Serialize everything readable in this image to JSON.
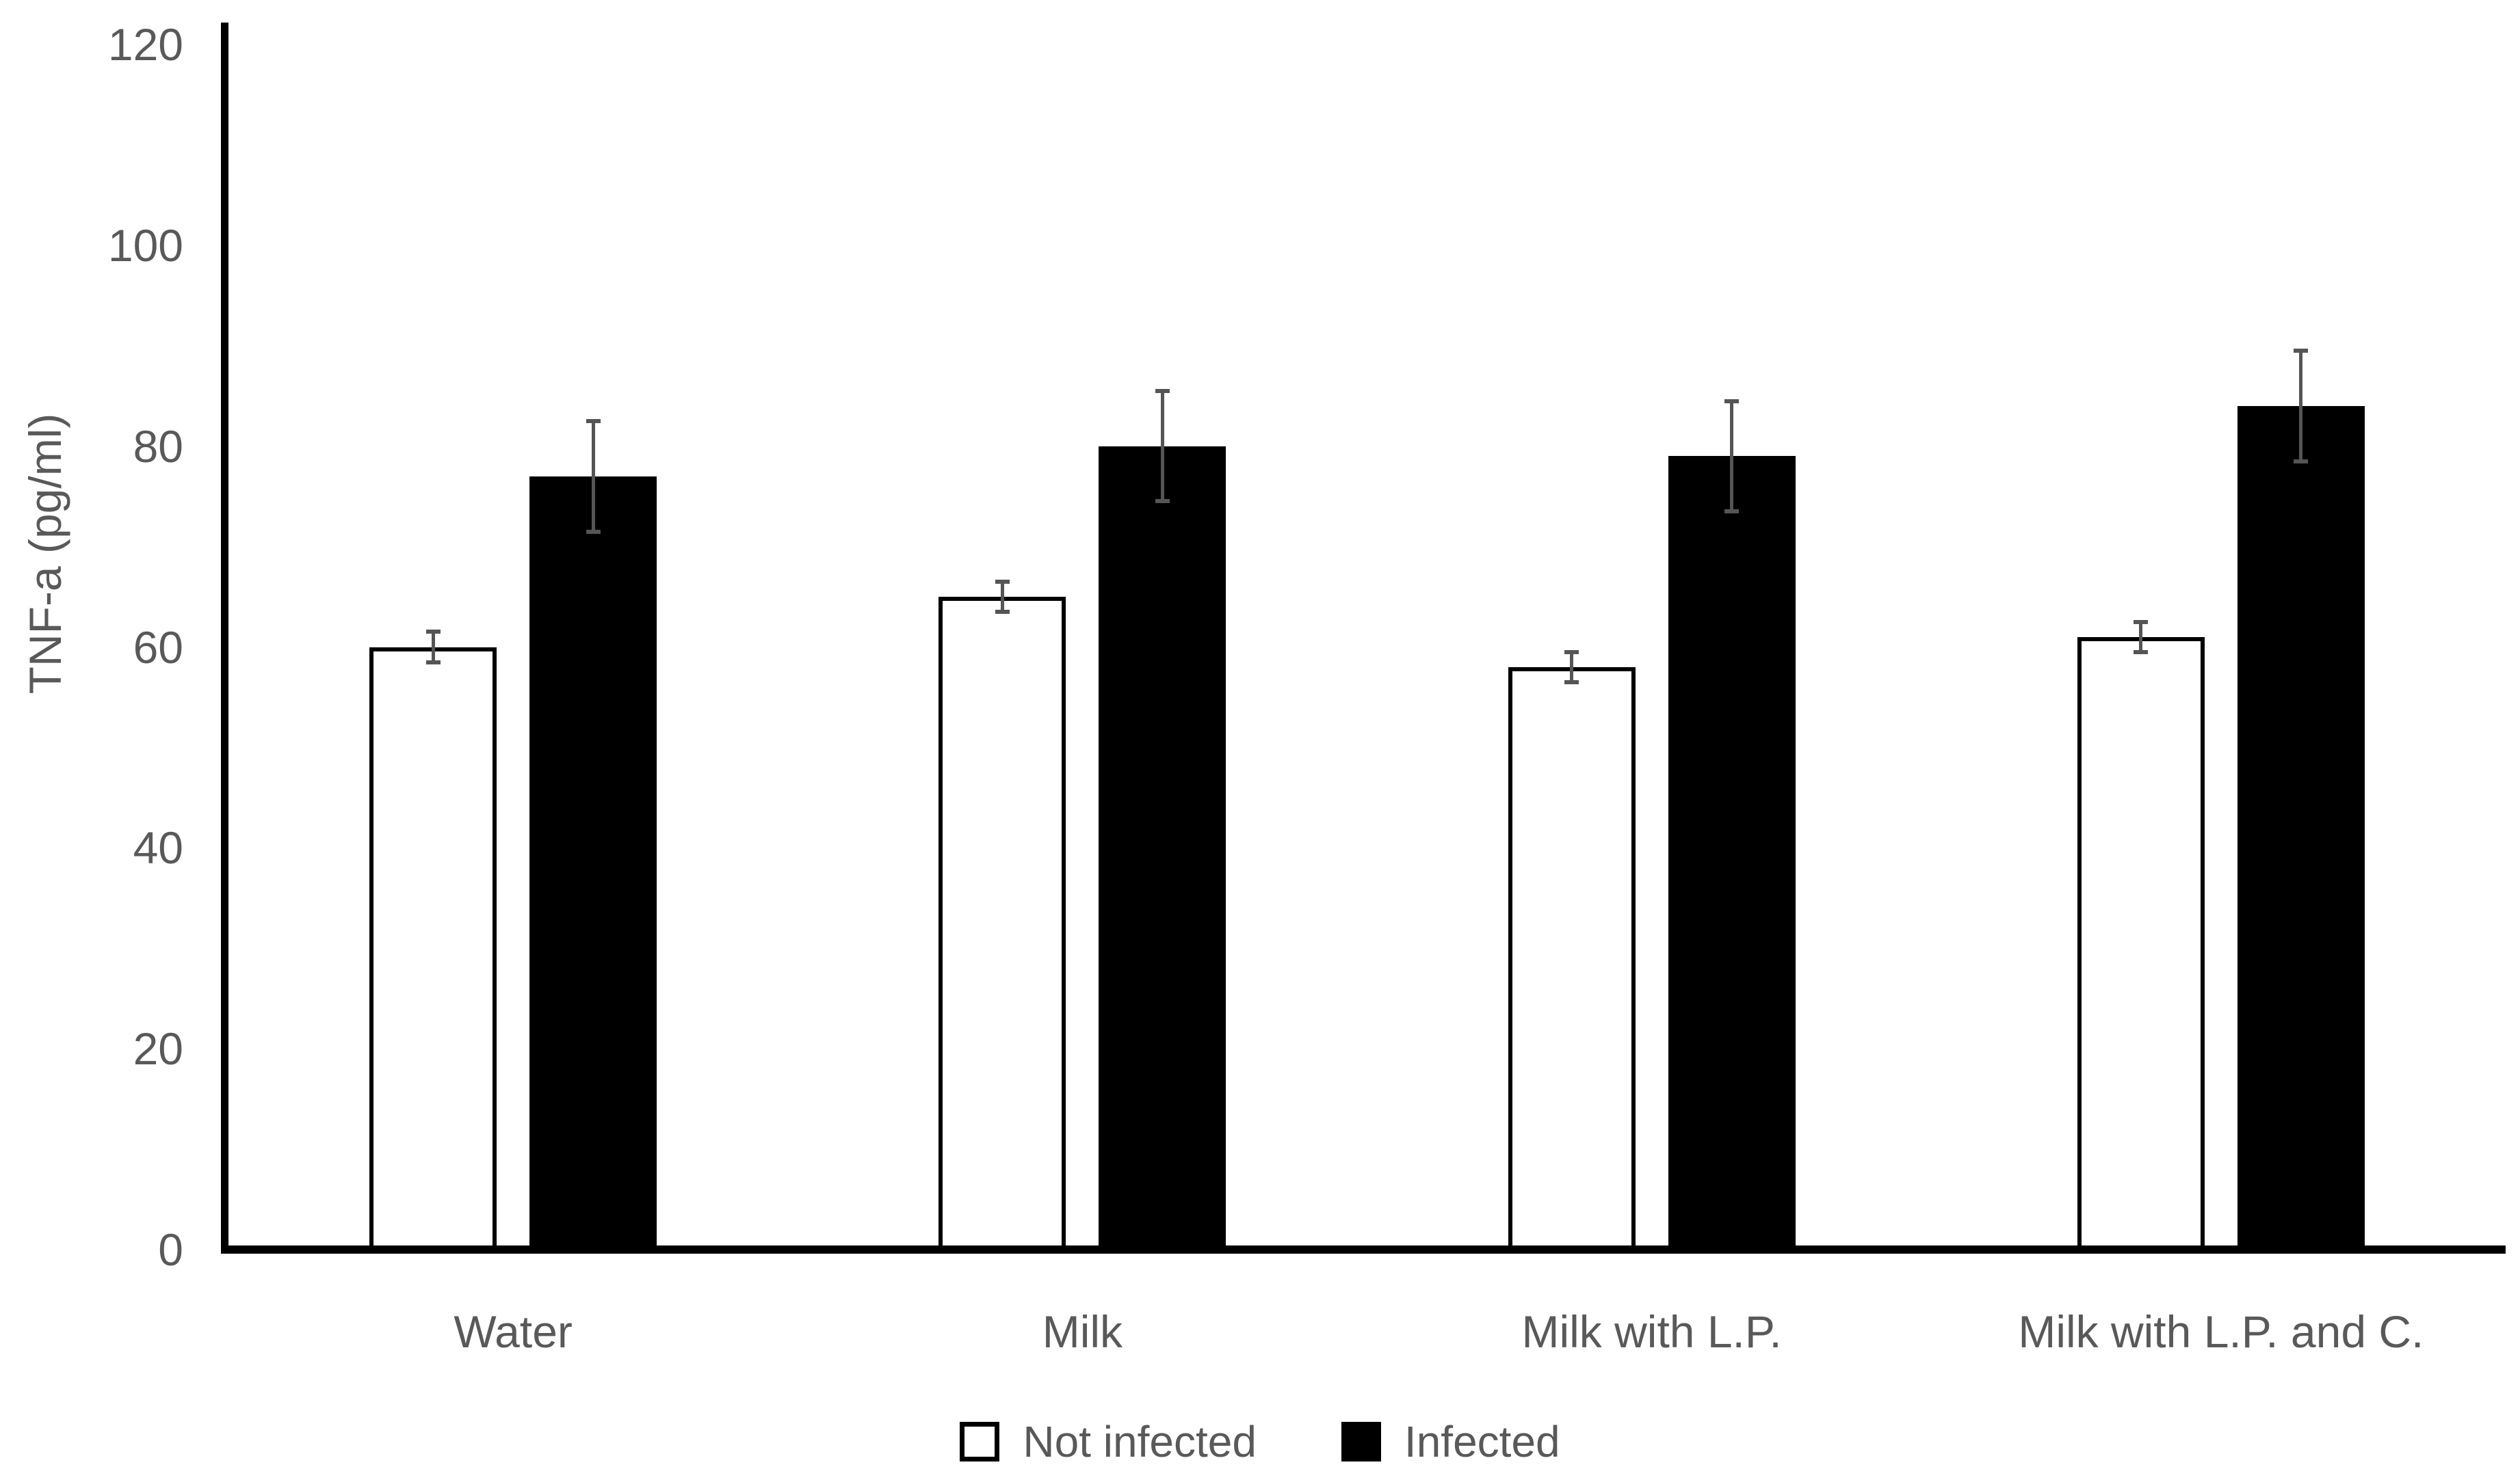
{
  "chart_data": {
    "type": "bar",
    "title": "",
    "ylabel": "TNF-a (pg/ml)",
    "xlabel": "",
    "ylim": [
      0,
      120
    ],
    "ytick_step": 20,
    "yticks": [
      0,
      20,
      40,
      60,
      80,
      100,
      120
    ],
    "grid": false,
    "legend_position": "bottom",
    "categories": [
      "Water",
      "Milk",
      "Milk with L.P.",
      "Milk with L.P. and C."
    ],
    "series": [
      {
        "name": "Not infected",
        "fill": "#ffffff",
        "border": "#000000",
        "values": [
          60,
          65,
          58,
          61
        ],
        "error_bars": [
          1.5,
          1.5,
          1.5,
          1.5
        ]
      },
      {
        "name": "Infected",
        "fill": "#000000",
        "border": "#000000",
        "values": [
          77,
          80,
          79,
          84
        ],
        "error_bars": [
          5.5,
          5.5,
          5.5,
          5.5
        ]
      }
    ],
    "colors": {
      "axis": "#000000",
      "text": "#595959",
      "error_bar": "#555555",
      "background": "#ffffff"
    }
  }
}
